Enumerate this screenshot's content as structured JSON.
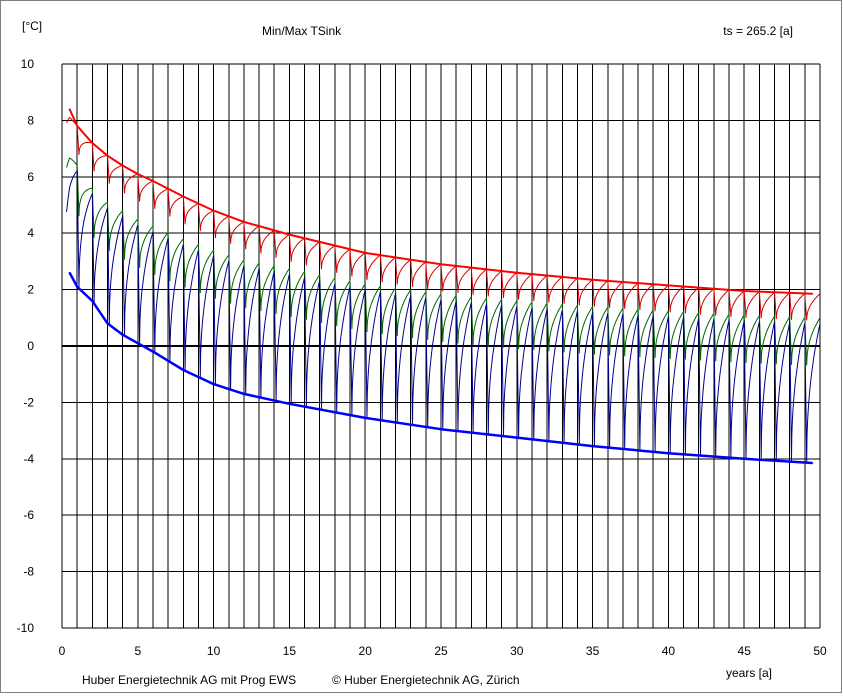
{
  "chart_data": {
    "type": "line",
    "title": "Min/Max TSink",
    "ylabel": "[°C]",
    "xlabel": "years [a]",
    "info": "ts = 265.2 [a]",
    "footer_left": "Huber Energietechnik AG mit Prog EWS",
    "footer_right": "© Huber Energietechnik AG, Zürich",
    "xlim": [
      0,
      50
    ],
    "ylim": [
      -10,
      10
    ],
    "x_ticks": [
      0,
      5,
      10,
      15,
      20,
      25,
      30,
      35,
      40,
      45,
      50
    ],
    "y_ticks": [
      10,
      8,
      6,
      4,
      2,
      0,
      -2,
      -4,
      -6,
      -8,
      -10
    ],
    "grid": true,
    "colors": {
      "max": "#ff0000",
      "mean": "#007a00",
      "min": "#0000ff",
      "max_cycle": "#d40000",
      "mean_cycle": "#006400",
      "min_cycle": "#00008b",
      "grid": "#000000",
      "zero": "#000000"
    },
    "envelope_years": [
      0.5,
      1,
      2,
      3,
      4,
      5,
      6,
      8,
      10,
      12,
      15,
      20,
      25,
      30,
      35,
      40,
      45,
      49.5
    ],
    "series": [
      {
        "key": "max",
        "values": [
          8.4,
          7.8,
          7.2,
          6.75,
          6.4,
          6.1,
          5.85,
          5.3,
          4.8,
          4.4,
          3.95,
          3.3,
          2.9,
          2.6,
          2.35,
          2.15,
          1.95,
          1.85
        ]
      },
      {
        "key": "mean",
        "values": [
          7.2,
          6.4,
          5.6,
          5.1,
          4.8,
          4.5,
          4.25,
          3.8,
          3.4,
          3.05,
          2.75,
          2.2,
          1.85,
          1.6,
          1.4,
          1.25,
          1.1,
          1.0
        ]
      },
      {
        "key": "min",
        "values": [
          2.6,
          2.1,
          1.6,
          0.8,
          0.4,
          0.1,
          -0.2,
          -0.85,
          -1.35,
          -1.7,
          -2.05,
          -2.55,
          -2.95,
          -3.25,
          -3.55,
          -3.8,
          -4.0,
          -4.15
        ]
      }
    ]
  }
}
